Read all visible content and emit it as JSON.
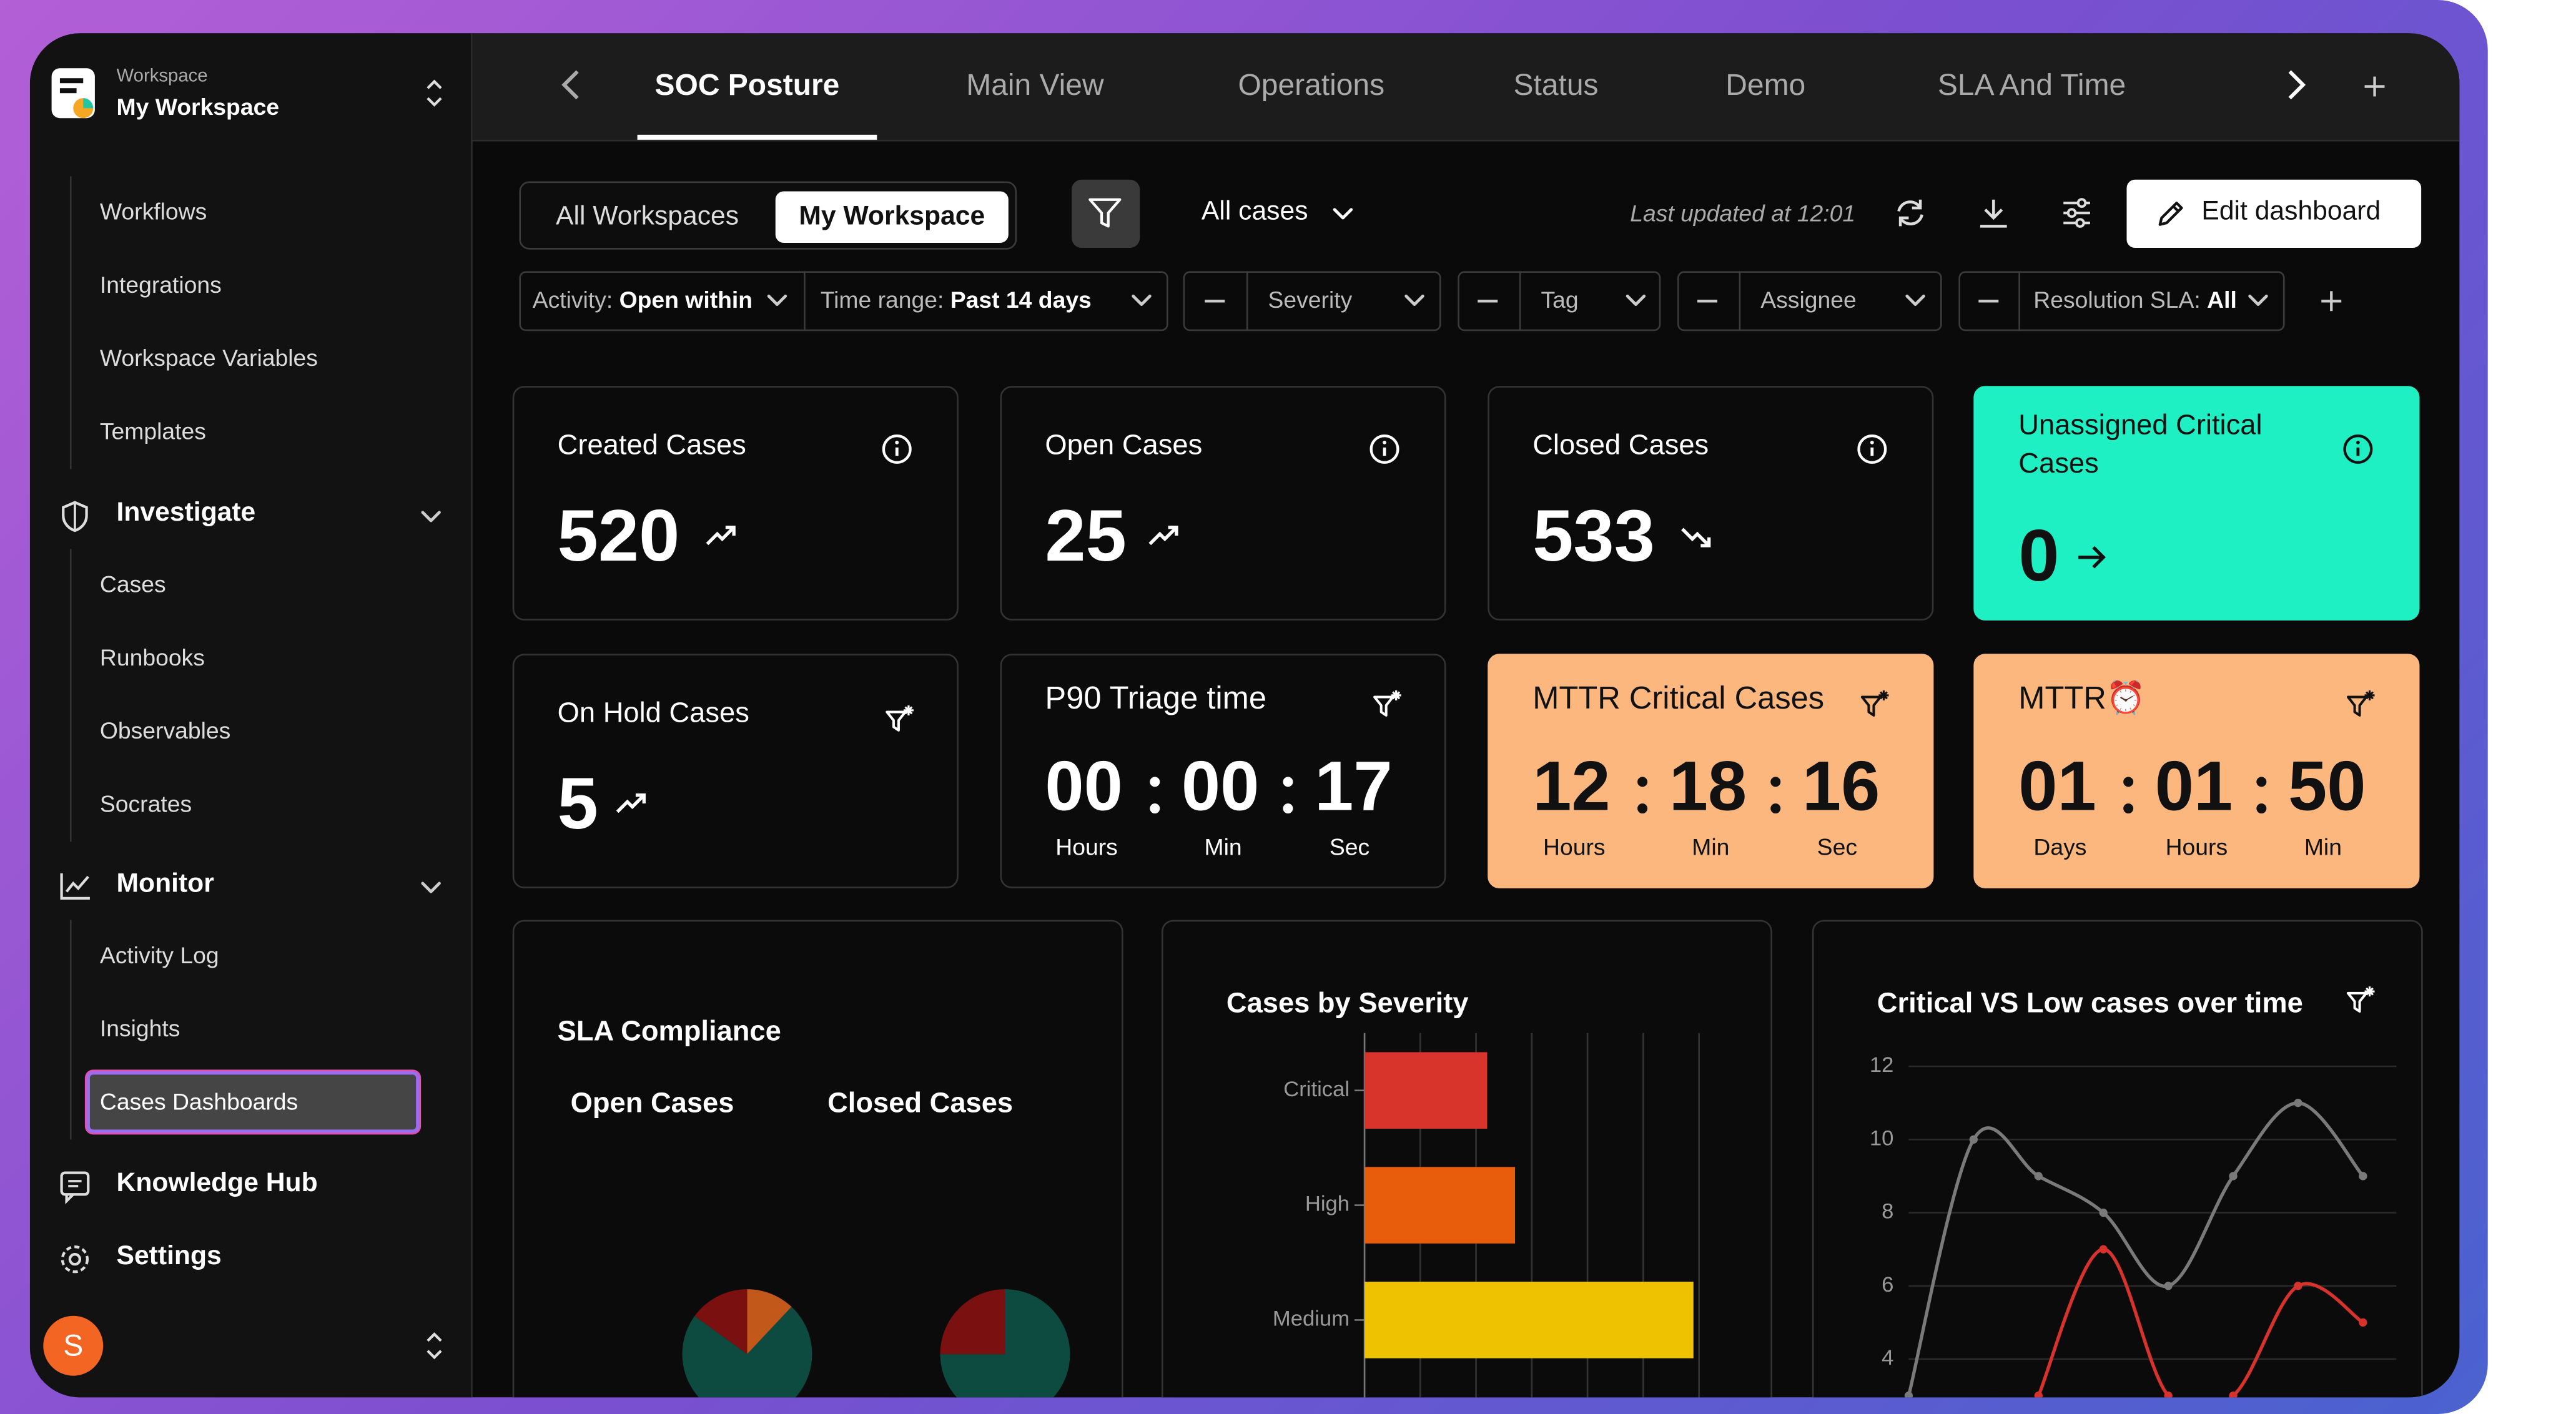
{
  "sidebar": {
    "workspace_label": "Workspace",
    "workspace_name": "My Workspace",
    "groups": [
      {
        "items": [
          "Workflows",
          "Integrations",
          "Workspace Variables",
          "Templates"
        ]
      },
      {
        "title": "Investigate",
        "items": [
          "Cases",
          "Runbooks",
          "Observables",
          "Socrates"
        ]
      },
      {
        "title": "Monitor",
        "items": [
          "Activity Log",
          "Insights",
          "Cases Dashboards"
        ]
      }
    ],
    "links": [
      "Knowledge Hub",
      "Settings"
    ],
    "active": {
      "group": 2,
      "item": 2
    },
    "user_initial": "S"
  },
  "tabs": {
    "items": [
      "SOC Posture",
      "Main View",
      "Operations",
      "Status",
      "Demo",
      "SLA And Time"
    ],
    "active": 0
  },
  "toolbar": {
    "scopes": [
      "All Workspaces",
      "My Workspace"
    ],
    "active_scope": 1,
    "case_filter": "All cases",
    "last_updated": "Last updated at 12:01",
    "edit_button": "Edit dashboard"
  },
  "filters": [
    {
      "label": "Activity:",
      "value": "Open within"
    },
    {
      "label": "Time range:",
      "value": "Past 14 days"
    },
    {
      "label": "Severity"
    },
    {
      "label": "Tag"
    },
    {
      "label": "Assignee"
    },
    {
      "label": "Resolution SLA:",
      "value": "All"
    }
  ],
  "cards": [
    {
      "title": "Created Cases",
      "value": 520,
      "trend": "up",
      "icon": "info"
    },
    {
      "title": "Open Cases",
      "value": 25,
      "trend": "up",
      "icon": "info"
    },
    {
      "title": "Closed Cases",
      "value": 533,
      "trend": "down",
      "icon": "info"
    },
    {
      "title": "Unassigned Critical Cases",
      "value": 0,
      "trend": "arrow",
      "icon": "info",
      "color": "#1ef0c3"
    },
    {
      "title": "On Hold Cases",
      "value": 5,
      "trend": "up",
      "icon": "filter"
    },
    {
      "title": "P90 Triage time",
      "icon": "filter",
      "timer": [
        {
          "value": "00",
          "unit": "Hours"
        },
        {
          "value": "00",
          "unit": "Min"
        },
        {
          "value": "17",
          "unit": "Sec"
        }
      ]
    },
    {
      "title": "MTTR Critical Cases",
      "icon": "filter",
      "color": "#fbb77e",
      "timer": [
        {
          "value": "12",
          "unit": "Hours"
        },
        {
          "value": "18",
          "unit": "Min"
        },
        {
          "value": "16",
          "unit": "Sec"
        }
      ]
    },
    {
      "title": "MTTR⏰",
      "icon": "filter",
      "color": "#fbb77e",
      "timer": [
        {
          "value": "01",
          "unit": "Days"
        },
        {
          "value": "01",
          "unit": "Hours"
        },
        {
          "value": "50",
          "unit": "Min"
        }
      ]
    }
  ],
  "chart_data": [
    {
      "type": "pie",
      "title": "SLA Compliance",
      "pies": [
        {
          "label": "Open Cases",
          "slices": [
            {
              "value": 12,
              "color": "#c2581a"
            },
            {
              "value": 73,
              "color": "#0d4a40"
            },
            {
              "value": 15,
              "color": "#7a1010"
            }
          ]
        },
        {
          "label": "Closed Cases",
          "slices": [
            {
              "value": 75,
              "color": "#0d4a40"
            },
            {
              "value": 25,
              "color": "#7a1010"
            }
          ]
        }
      ]
    },
    {
      "type": "bar",
      "orientation": "horizontal",
      "title": "Cases by Severity",
      "categories": [
        "Critical",
        "High",
        "Medium"
      ],
      "values": [
        2.2,
        2.7,
        5.9
      ],
      "colors": [
        "#d9342b",
        "#e85d0c",
        "#eec200"
      ],
      "xlim": [
        0,
        6
      ],
      "grid": true
    },
    {
      "type": "line",
      "title": "Critical VS Low cases over time",
      "categories": [
        null,
        null,
        null,
        null,
        null,
        null,
        null,
        null
      ],
      "series": [
        {
          "color": "#7a7a7a",
          "values": [
            3,
            10,
            9,
            8,
            6,
            9,
            11,
            9
          ]
        },
        {
          "color": "#d8322c",
          "values": [
            null,
            null,
            3,
            7,
            3,
            3,
            6,
            5
          ]
        }
      ],
      "ylim": [
        2,
        12
      ],
      "yticks": [
        4,
        6,
        8,
        10,
        12
      ],
      "grid": true
    }
  ]
}
